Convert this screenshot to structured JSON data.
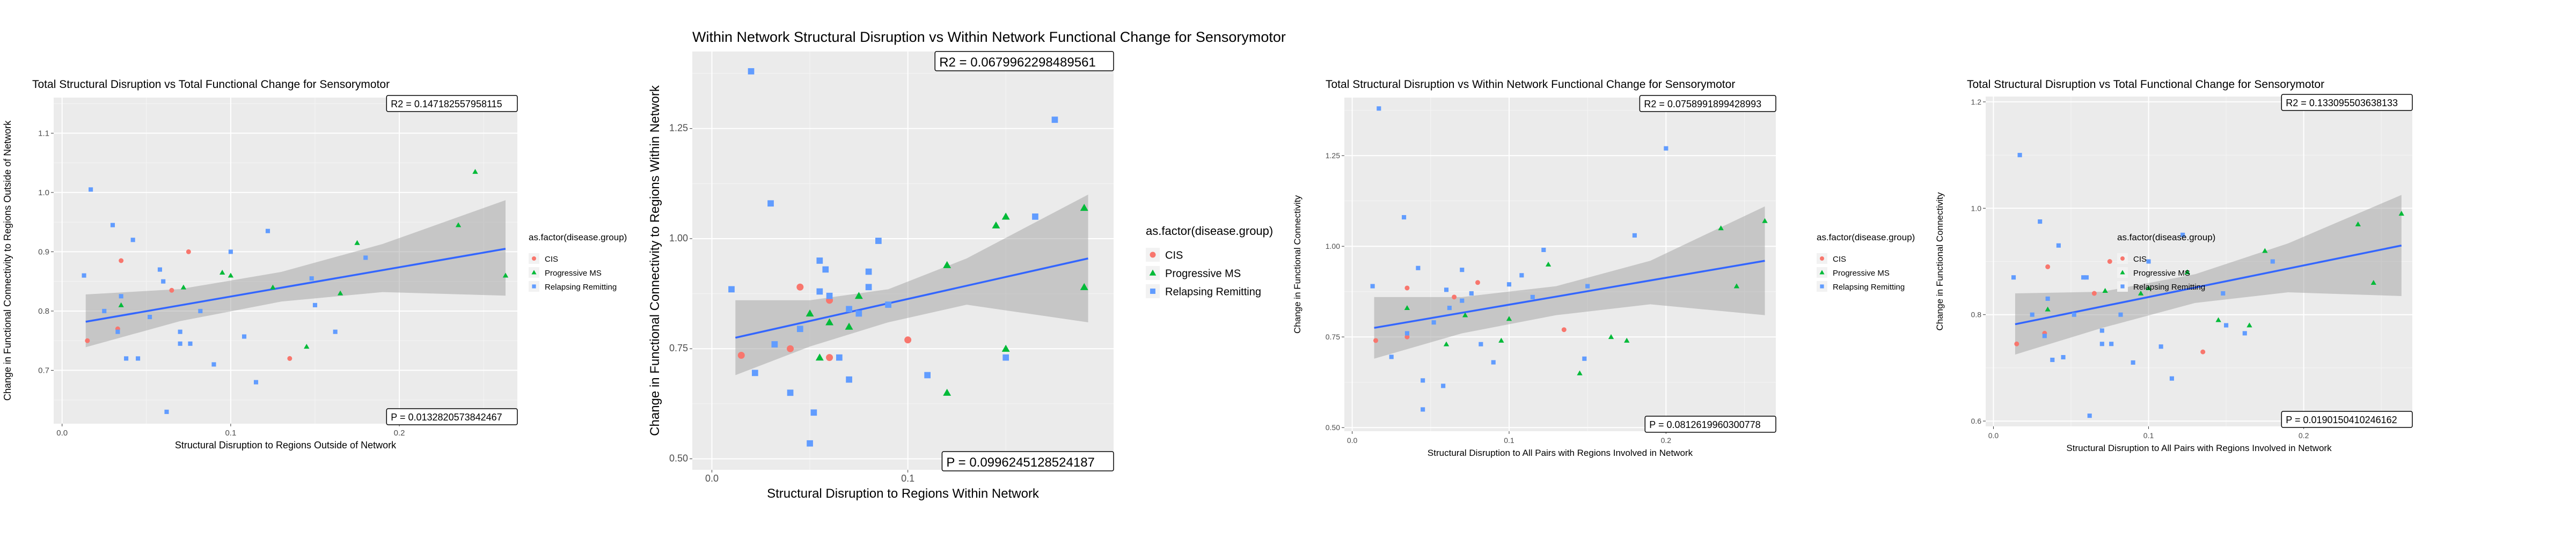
{
  "colors": {
    "panel_bg": "#EBEBEB",
    "grid_major": "#FFFFFF",
    "grid_minor": "#F5F5F5",
    "fit_line": "#3366FF",
    "ribbon": "#999999",
    "cis": "#F8766D",
    "progressive": "#00BA38",
    "relapsing": "#619CFF"
  },
  "chart_data": [
    {
      "type": "scatter",
      "title": "Total Structural Disruption vs Total Functional Change for Sensorymotor",
      "xlabel": "Structural Disruption to Regions Outside of Network",
      "ylabel": "Change in Functional Connectivity to Regions Outside of Network",
      "xlim": [
        -0.005,
        0.27
      ],
      "ylim": [
        0.61,
        1.16
      ],
      "xticks": [
        0.0,
        0.1,
        0.2
      ],
      "xtick_labels": [
        "0.0",
        "0.1",
        "0.2"
      ],
      "yticks": [
        0.7,
        0.8,
        0.9,
        1.0,
        1.1
      ],
      "ytick_labels": [
        "0.7",
        "0.8",
        "0.9",
        "1.0",
        "1.1"
      ],
      "r2_label": "R2 =  0.147182557958115",
      "p_label": "P =  0.0132820573842467",
      "fit": {
        "x0": 0.014,
        "y0": 0.782,
        "x1": 0.263,
        "y1": 0.905
      },
      "ribbon": [
        [
          0.014,
          0.739,
          0.828
        ],
        [
          0.07,
          0.783,
          0.837
        ],
        [
          0.13,
          0.816,
          0.866
        ],
        [
          0.19,
          0.832,
          0.913
        ],
        [
          0.263,
          0.826,
          0.987
        ]
      ],
      "legend": {
        "title": "as.factor(disease.group)",
        "entries": [
          "CIS",
          "Progressive MS",
          "Relapsing Remitting"
        ],
        "position": "right"
      },
      "series": [
        {
          "name": "CIS",
          "shape": "circle",
          "points": [
            [
              0.015,
              0.75
            ],
            [
              0.033,
              0.77
            ],
            [
              0.035,
              0.885
            ],
            [
              0.065,
              0.835
            ],
            [
              0.075,
              0.9
            ],
            [
              0.135,
              0.72
            ]
          ]
        },
        {
          "name": "Progressive MS",
          "shape": "triangle",
          "points": [
            [
              0.035,
              0.81
            ],
            [
              0.072,
              0.84
            ],
            [
              0.095,
              0.865
            ],
            [
              0.1,
              0.86
            ],
            [
              0.125,
              0.84
            ],
            [
              0.145,
              0.74
            ],
            [
              0.165,
              0.83
            ],
            [
              0.175,
              0.915
            ],
            [
              0.235,
              0.945
            ],
            [
              0.245,
              1.035
            ],
            [
              0.263,
              0.86
            ]
          ]
        },
        {
          "name": "Relapsing Remitting",
          "shape": "square",
          "points": [
            [
              0.013,
              0.86
            ],
            [
              0.017,
              1.005
            ],
            [
              0.025,
              0.8
            ],
            [
              0.033,
              0.765
            ],
            [
              0.035,
              0.825
            ],
            [
              0.045,
              0.72
            ],
            [
              0.052,
              0.79
            ],
            [
              0.06,
              0.85
            ],
            [
              0.07,
              0.745
            ],
            [
              0.076,
              0.745
            ],
            [
              0.082,
              0.8
            ],
            [
              0.09,
              0.71
            ],
            [
              0.1,
              0.9
            ],
            [
              0.122,
              0.935
            ],
            [
              0.148,
              0.855
            ],
            [
              0.15,
              0.81
            ],
            [
              0.162,
              0.765
            ],
            [
              0.18,
              0.89
            ],
            [
              0.195,
              1.14
            ],
            [
              0.03,
              0.945
            ],
            [
              0.038,
              0.72
            ],
            [
              0.058,
              0.87
            ],
            [
              0.062,
              0.63
            ],
            [
              0.108,
              0.757
            ],
            [
              0.115,
              0.68
            ],
            [
              0.07,
              0.765
            ],
            [
              0.042,
              0.92
            ]
          ]
        }
      ]
    },
    {
      "type": "scatter",
      "title": "Within Network Structural Disruption vs Within Network Functional Change for Sensorymotor",
      "xlabel": "Structural Disruption to Regions Within Network",
      "ylabel": "Change in Functional Connectivity to Regions Within Network",
      "xlim": [
        -0.01,
        0.205
      ],
      "ylim": [
        0.475,
        1.425
      ],
      "xticks": [
        0.0,
        0.1
      ],
      "xtick_labels": [
        "0.0",
        "0.1"
      ],
      "yticks": [
        0.5,
        0.75,
        1.0,
        1.25
      ],
      "ytick_labels": [
        "0.50",
        "0.75",
        "1.00",
        "1.25"
      ],
      "r2_label": "R2 =  0.0679962298489561",
      "p_label": "P =  0.0996245128524187",
      "fit": {
        "x0": 0.012,
        "y0": 0.775,
        "x1": 0.192,
        "y1": 0.955
      },
      "ribbon": [
        [
          0.012,
          0.69,
          0.86
        ],
        [
          0.05,
          0.755,
          0.86
        ],
        [
          0.09,
          0.81,
          0.885
        ],
        [
          0.13,
          0.85,
          0.955
        ],
        [
          0.192,
          0.81,
          1.1
        ]
      ],
      "legend": {
        "title": "as.factor(disease.group)",
        "entries": [
          "CIS",
          "Progressive MS",
          "Relapsing Remitting"
        ],
        "position": "right"
      },
      "series": [
        {
          "name": "CIS",
          "shape": "circle",
          "points": [
            [
              0.015,
              0.735
            ],
            [
              0.04,
              0.75
            ],
            [
              0.045,
              0.89
            ],
            [
              0.06,
              0.86
            ],
            [
              0.1,
              0.77
            ],
            [
              0.06,
              0.73
            ]
          ]
        },
        {
          "name": "Progressive MS",
          "shape": "triangle",
          "points": [
            [
              0.05,
              0.83
            ],
            [
              0.055,
              0.73
            ],
            [
              0.06,
              0.81
            ],
            [
              0.12,
              0.94
            ],
            [
              0.12,
              0.65
            ],
            [
              0.145,
              1.03
            ],
            [
              0.15,
              1.05
            ],
            [
              0.15,
              0.75
            ],
            [
              0.19,
              1.07
            ],
            [
              0.19,
              0.89
            ],
            [
              0.07,
              0.8
            ],
            [
              0.075,
              0.87
            ]
          ]
        },
        {
          "name": "Relapsing Remitting",
          "shape": "square",
          "points": [
            [
              0.01,
              0.885
            ],
            [
              0.02,
              1.38
            ],
            [
              0.022,
              0.695
            ],
            [
              0.03,
              1.08
            ],
            [
              0.032,
              0.76
            ],
            [
              0.04,
              0.65
            ],
            [
              0.045,
              0.795
            ],
            [
              0.05,
              0.535
            ],
            [
              0.052,
              0.605
            ],
            [
              0.055,
              0.88
            ],
            [
              0.058,
              0.93
            ],
            [
              0.06,
              0.87
            ],
            [
              0.065,
              0.73
            ],
            [
              0.07,
              0.68
            ],
            [
              0.075,
              0.83
            ],
            [
              0.08,
              0.89
            ],
            [
              0.085,
              0.995
            ],
            [
              0.09,
              0.85
            ],
            [
              0.11,
              0.69
            ],
            [
              0.15,
              0.73
            ],
            [
              0.165,
              1.05
            ],
            [
              0.175,
              1.27
            ],
            [
              0.055,
              0.95
            ],
            [
              0.07,
              0.84
            ],
            [
              0.08,
              0.925
            ]
          ]
        }
      ]
    },
    {
      "type": "scatter",
      "title": "Total Structural Disruption vs Within Network Functional Change for Sensorymotor",
      "xlabel": "Structural Disruption to All Pairs with Regions Involved in Network",
      "ylabel": "Change in Functional Connectivity",
      "xlim": [
        -0.005,
        0.27
      ],
      "ylim": [
        0.49,
        1.41
      ],
      "xticks": [
        0.0,
        0.1,
        0.2
      ],
      "xtick_labels": [
        "0.0",
        "0.1",
        "0.2"
      ],
      "yticks": [
        0.5,
        0.75,
        1.0,
        1.25
      ],
      "ytick_labels": [
        "0.50",
        "0.75",
        "1.00",
        "1.25"
      ],
      "r2_label": "R2 =  0.0758991899428993",
      "p_label": "P =  0.0812619960300778",
      "fit": {
        "x0": 0.014,
        "y0": 0.775,
        "x1": 0.263,
        "y1": 0.96
      },
      "ribbon": [
        [
          0.014,
          0.69,
          0.86
        ],
        [
          0.07,
          0.76,
          0.86
        ],
        [
          0.13,
          0.81,
          0.89
        ],
        [
          0.19,
          0.84,
          0.96
        ],
        [
          0.263,
          0.81,
          1.11
        ]
      ],
      "legend": {
        "title": "as.factor(disease.group)",
        "entries": [
          "CIS",
          "Progressive MS",
          "Relapsing Remitting"
        ],
        "position": "right"
      },
      "series": [
        {
          "name": "CIS",
          "shape": "circle",
          "points": [
            [
              0.015,
              0.74
            ],
            [
              0.035,
              0.75
            ],
            [
              0.035,
              0.885
            ],
            [
              0.065,
              0.86
            ],
            [
              0.08,
              0.9
            ],
            [
              0.135,
              0.77
            ]
          ]
        },
        {
          "name": "Progressive MS",
          "shape": "triangle",
          "points": [
            [
              0.035,
              0.83
            ],
            [
              0.06,
              0.73
            ],
            [
              0.072,
              0.81
            ],
            [
              0.095,
              0.74
            ],
            [
              0.1,
              0.8
            ],
            [
              0.125,
              0.95
            ],
            [
              0.145,
              0.65
            ],
            [
              0.165,
              0.75
            ],
            [
              0.175,
              0.74
            ],
            [
              0.235,
              1.05
            ],
            [
              0.245,
              0.89
            ],
            [
              0.263,
              1.07
            ]
          ]
        },
        {
          "name": "Relapsing Remitting",
          "shape": "square",
          "points": [
            [
              0.013,
              0.89
            ],
            [
              0.017,
              1.38
            ],
            [
              0.025,
              0.695
            ],
            [
              0.033,
              1.08
            ],
            [
              0.035,
              0.76
            ],
            [
              0.045,
              0.63
            ],
            [
              0.052,
              0.79
            ],
            [
              0.06,
              0.88
            ],
            [
              0.07,
              0.935
            ],
            [
              0.076,
              0.87
            ],
            [
              0.082,
              0.73
            ],
            [
              0.09,
              0.68
            ],
            [
              0.1,
              0.895
            ],
            [
              0.122,
              0.99
            ],
            [
              0.148,
              0.69
            ],
            [
              0.15,
              0.89
            ],
            [
              0.18,
              1.03
            ],
            [
              0.2,
              1.27
            ],
            [
              0.045,
              0.55
            ],
            [
              0.058,
              0.615
            ],
            [
              0.062,
              0.83
            ],
            [
              0.108,
              0.92
            ],
            [
              0.115,
              0.86
            ],
            [
              0.07,
              0.85
            ],
            [
              0.042,
              0.94
            ]
          ]
        }
      ]
    },
    {
      "type": "scatter",
      "title": "Total Structural Disruption vs Total Functional Change for Sensorymotor",
      "xlabel": "Structural Disruption to All Pairs with Regions Involved in Network",
      "ylabel": "Change in Functional Connectivity",
      "xlim": [
        -0.005,
        0.27
      ],
      "ylim": [
        0.59,
        1.21
      ],
      "xticks": [
        0.0,
        0.1,
        0.2
      ],
      "xtick_labels": [
        "0.0",
        "0.1",
        "0.2"
      ],
      "yticks": [
        0.6,
        0.8,
        1.0,
        1.2
      ],
      "ytick_labels": [
        "0.6",
        "0.8",
        "1.0",
        "1.2"
      ],
      "r2_label": "R2 =  0.133095503638133",
      "p_label": "P =  0.0190150410246162",
      "fit": {
        "x0": 0.014,
        "y0": 0.782,
        "x1": 0.263,
        "y1": 0.93
      },
      "ribbon": [
        [
          0.014,
          0.725,
          0.84
        ],
        [
          0.07,
          0.775,
          0.843
        ],
        [
          0.13,
          0.822,
          0.876
        ],
        [
          0.19,
          0.842,
          0.934
        ],
        [
          0.263,
          0.835,
          1.025
        ]
      ],
      "legend": {
        "title": "as.factor(disease.group)",
        "entries": [
          "CIS",
          "Progressive MS",
          "Relapsing Remitting"
        ],
        "position": "right"
      },
      "series": [
        {
          "name": "CIS",
          "shape": "circle",
          "points": [
            [
              0.015,
              0.745
            ],
            [
              0.033,
              0.765
            ],
            [
              0.035,
              0.89
            ],
            [
              0.065,
              0.84
            ],
            [
              0.075,
              0.9
            ],
            [
              0.135,
              0.73
            ]
          ]
        },
        {
          "name": "Progressive MS",
          "shape": "triangle",
          "points": [
            [
              0.035,
              0.81
            ],
            [
              0.072,
              0.845
            ],
            [
              0.095,
              0.84
            ],
            [
              0.1,
              0.85
            ],
            [
              0.125,
              0.88
            ],
            [
              0.145,
              0.79
            ],
            [
              0.165,
              0.78
            ],
            [
              0.175,
              0.92
            ],
            [
              0.235,
              0.97
            ],
            [
              0.245,
              0.86
            ],
            [
              0.263,
              0.99
            ]
          ]
        },
        {
          "name": "Relapsing Remitting",
          "shape": "square",
          "points": [
            [
              0.013,
              0.87
            ],
            [
              0.017,
              1.1
            ],
            [
              0.025,
              0.8
            ],
            [
              0.033,
              0.76
            ],
            [
              0.035,
              0.83
            ],
            [
              0.045,
              0.72
            ],
            [
              0.052,
              0.8
            ],
            [
              0.06,
              0.87
            ],
            [
              0.07,
              0.745
            ],
            [
              0.076,
              0.745
            ],
            [
              0.082,
              0.8
            ],
            [
              0.09,
              0.71
            ],
            [
              0.1,
              0.9
            ],
            [
              0.122,
              0.95
            ],
            [
              0.148,
              0.84
            ],
            [
              0.15,
              0.78
            ],
            [
              0.162,
              0.765
            ],
            [
              0.18,
              0.9
            ],
            [
              0.2,
              1.19
            ],
            [
              0.03,
              0.975
            ],
            [
              0.038,
              0.715
            ],
            [
              0.058,
              0.87
            ],
            [
              0.062,
              0.61
            ],
            [
              0.108,
              0.74
            ],
            [
              0.115,
              0.68
            ],
            [
              0.07,
              0.77
            ],
            [
              0.042,
              0.93
            ]
          ]
        }
      ]
    }
  ]
}
